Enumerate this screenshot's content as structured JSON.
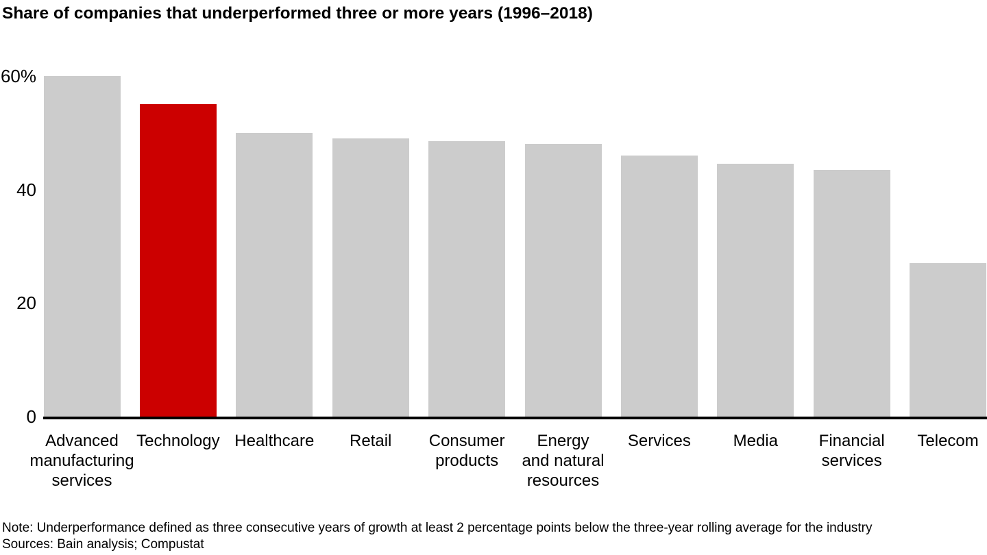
{
  "title": "Share of companies that underperformed three or more years (1996–2018)",
  "note": "Note: Underperformance defined as three consecutive years of growth at least 2 percentage points below the three-year rolling average for the industry",
  "sources": "Sources: Bain analysis; Compustat",
  "colors": {
    "bar_default": "#cccccc",
    "bar_highlight": "#cc0000",
    "axis": "#000000",
    "text": "#000000",
    "background": "#ffffff"
  },
  "chart_data": {
    "type": "bar",
    "title": "Share of companies that underperformed three or more years (1996–2018)",
    "categories": [
      "Advanced manufacturing services",
      "Technology",
      "Healthcare",
      "Retail",
      "Consumer products",
      "Energy and natural resources",
      "Services",
      "Media",
      "Financial services",
      "Telecom"
    ],
    "tick_lines": [
      [
        "Advanced",
        "manufacturing",
        "services"
      ],
      [
        "Technology"
      ],
      [
        "Healthcare"
      ],
      [
        "Retail"
      ],
      [
        "Consumer",
        "products"
      ],
      [
        "Energy",
        "and natural",
        "resources"
      ],
      [
        "Services"
      ],
      [
        "Media"
      ],
      [
        "Financial",
        "services"
      ],
      [
        "Telecom"
      ]
    ],
    "values": [
      60,
      55,
      50,
      49,
      48.5,
      48,
      46,
      44.5,
      43.5,
      27
    ],
    "highlight_category": "Technology",
    "unit": "%",
    "xlabel": "",
    "ylabel": "",
    "ylim": [
      0,
      60
    ],
    "grid": false,
    "legend": "none",
    "yticks": [
      {
        "value": 0,
        "label": "0"
      },
      {
        "value": 20,
        "label": "20"
      },
      {
        "value": 40,
        "label": "40"
      },
      {
        "value": 60,
        "label": "60%"
      }
    ]
  }
}
